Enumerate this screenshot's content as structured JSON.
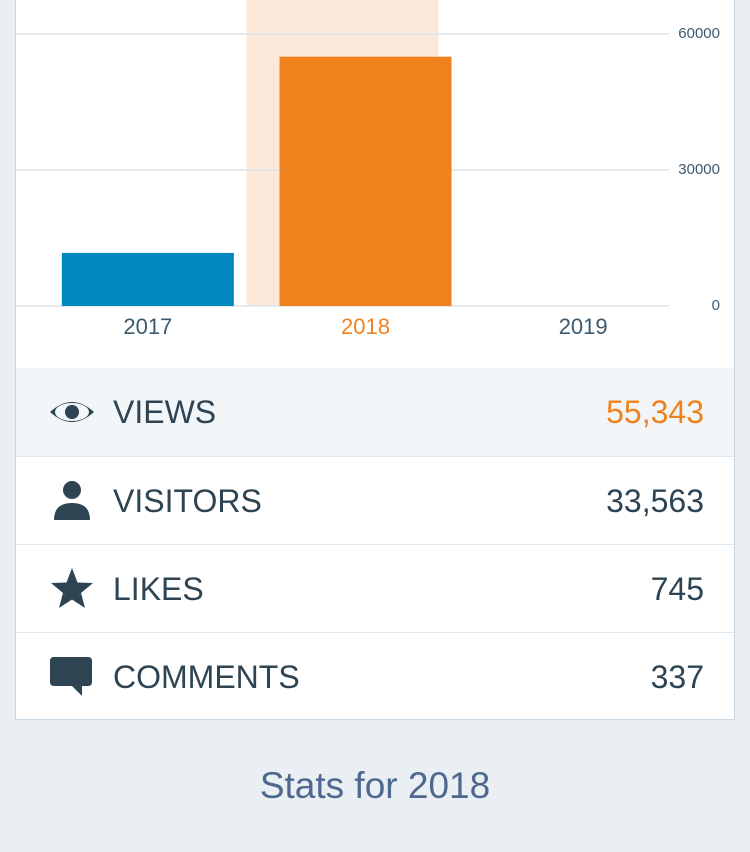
{
  "chart_data": {
    "type": "bar",
    "categories": [
      "2017",
      "2018",
      "2019"
    ],
    "values": [
      11700,
      55000,
      0
    ],
    "color": "#0087be",
    "selected_color": "#f0821e",
    "selected_band_color": "#fce8d8",
    "selected_index": 1,
    "ylim": [
      0,
      67500
    ],
    "yticks": [
      0,
      30000,
      60000
    ],
    "grid": true
  },
  "stats": [
    {
      "label": "VIEWS",
      "value": "55,343"
    },
    {
      "label": "VISITORS",
      "value": "33,563"
    },
    {
      "label": "LIKES",
      "value": "745"
    },
    {
      "label": "COMMENTS",
      "value": "337"
    }
  ],
  "footer": "Stats for 2018"
}
